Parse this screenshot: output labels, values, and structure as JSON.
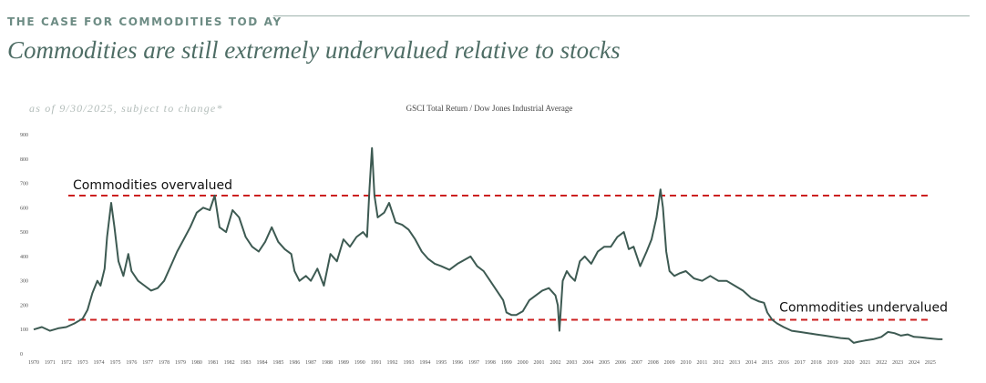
{
  "header": {
    "section_heading": "THE CASE FOR COMMODITIES TOD AY",
    "title": "Commodities are still extremely undervalued relative to stocks",
    "as_of_note": "as of 9/30/2025, subject to change*"
  },
  "colors": {
    "heading": "#6d8c84",
    "title": "#4e6d65",
    "line": "#3d5a52",
    "threshold": "#cc1f1f",
    "note": "#b3bdba"
  },
  "chart_data": {
    "type": "line",
    "title": "GSCI Total Return / Dow Jones Industrial Average",
    "xlabel": "",
    "ylabel": "",
    "ylim": [
      0,
      900
    ],
    "xlim": [
      1970,
      2025.9
    ],
    "yticks": [
      0,
      100,
      200,
      300,
      400,
      500,
      600,
      700,
      800,
      900
    ],
    "xticks": [
      "1970",
      "1971",
      "1972",
      "1973",
      "1974",
      "1975",
      "1976",
      "1977",
      "1978",
      "1979",
      "1980",
      "1981",
      "1982",
      "1983",
      "1984",
      "1985",
      "1986",
      "1987",
      "1988",
      "1989",
      "1990",
      "1991",
      "1992",
      "1993",
      "1994",
      "1995",
      "1996",
      "1997",
      "1998",
      "1999",
      "2000",
      "2001",
      "2002",
      "2003",
      "2004",
      "2005",
      "2006",
      "2007",
      "2008",
      "2009",
      "2010",
      "2011",
      "2012",
      "2013",
      "2014",
      "2015",
      "2016",
      "2017",
      "2018",
      "2019",
      "2020",
      "2021",
      "2022",
      "2023",
      "2024",
      "2025"
    ],
    "grid": false,
    "legend": "none",
    "series": [
      {
        "x": [
          1970.0,
          1970.5,
          1971.0,
          1971.5,
          1972.0,
          1972.5,
          1973.0,
          1973.3,
          1973.6,
          1973.9,
          1974.1,
          1974.35,
          1974.5,
          1974.75,
          1974.95,
          1975.2,
          1975.5,
          1975.8,
          1976.0,
          1976.4,
          1976.8,
          1977.2,
          1977.6,
          1978.0,
          1978.4,
          1978.8,
          1979.2,
          1979.6,
          1980.0,
          1980.4,
          1980.8,
          1981.1,
          1981.4,
          1981.8,
          1982.2,
          1982.6,
          1983.0,
          1983.4,
          1983.8,
          1984.2,
          1984.6,
          1985.0,
          1985.4,
          1985.8,
          1986.0,
          1986.3,
          1986.7,
          1987.0,
          1987.4,
          1987.8,
          1988.2,
          1988.6,
          1989.0,
          1989.4,
          1989.8,
          1990.2,
          1990.45,
          1990.6,
          1990.75,
          1990.9,
          1991.1,
          1991.5,
          1991.8,
          1992.2,
          1992.6,
          1993.0,
          1993.4,
          1993.8,
          1994.2,
          1994.6,
          1995.0,
          1995.5,
          1996.0,
          1996.4,
          1996.8,
          1997.2,
          1997.6,
          1998.0,
          1998.4,
          1998.8,
          1999.0,
          1999.3,
          1999.6,
          2000.0,
          2000.4,
          2000.8,
          2001.2,
          2001.6,
          2002.0,
          2002.15,
          2002.25,
          2002.45,
          2002.7,
          2002.9,
          2003.2,
          2003.5,
          2003.8,
          2004.2,
          2004.6,
          2005.0,
          2005.4,
          2005.8,
          2006.2,
          2006.5,
          2006.8,
          2007.2,
          2007.6,
          2007.9,
          2008.2,
          2008.45,
          2008.6,
          2008.8,
          2009.0,
          2009.3,
          2009.6,
          2010.0,
          2010.5,
          2011.0,
          2011.5,
          2012.0,
          2012.5,
          2013.0,
          2013.5,
          2014.0,
          2014.5,
          2014.8,
          2015.0,
          2015.3,
          2015.6,
          2016.0,
          2016.5,
          2017.0,
          2017.5,
          2018.0,
          2018.5,
          2019.0,
          2019.5,
          2020.0,
          2020.3,
          2020.6,
          2021.0,
          2021.5,
          2022.0,
          2022.4,
          2022.8,
          2023.2,
          2023.6,
          2024.0,
          2024.4,
          2024.8,
          2025.2,
          2025.5,
          2025.75
        ],
        "y": [
          100,
          110,
          95,
          105,
          110,
          125,
          145,
          180,
          250,
          300,
          280,
          350,
          480,
          620,
          520,
          380,
          320,
          410,
          340,
          300,
          280,
          260,
          270,
          300,
          360,
          420,
          470,
          520,
          580,
          600,
          590,
          650,
          520,
          500,
          590,
          560,
          480,
          440,
          420,
          460,
          520,
          460,
          430,
          410,
          340,
          300,
          320,
          300,
          350,
          280,
          410,
          380,
          470,
          440,
          480,
          500,
          480,
          680,
          845,
          650,
          560,
          580,
          620,
          540,
          530,
          510,
          470,
          420,
          390,
          370,
          360,
          345,
          370,
          385,
          400,
          360,
          340,
          300,
          260,
          220,
          170,
          160,
          160,
          175,
          220,
          240,
          260,
          270,
          240,
          200,
          95,
          300,
          340,
          320,
          300,
          380,
          400,
          370,
          420,
          440,
          440,
          480,
          500,
          430,
          440,
          360,
          420,
          470,
          560,
          675,
          600,
          420,
          340,
          320,
          330,
          340,
          310,
          300,
          320,
          300,
          300,
          280,
          260,
          230,
          215,
          210,
          170,
          140,
          125,
          110,
          95,
          90,
          85,
          80,
          75,
          70,
          65,
          62,
          45,
          50,
          55,
          60,
          70,
          90,
          85,
          75,
          80,
          70,
          68,
          65,
          62,
          60,
          60
        ]
      }
    ],
    "thresholds": [
      {
        "label": "Commodities overvalued",
        "y": 650
      },
      {
        "label": "Commodities undervalued",
        "y": 140
      }
    ]
  }
}
